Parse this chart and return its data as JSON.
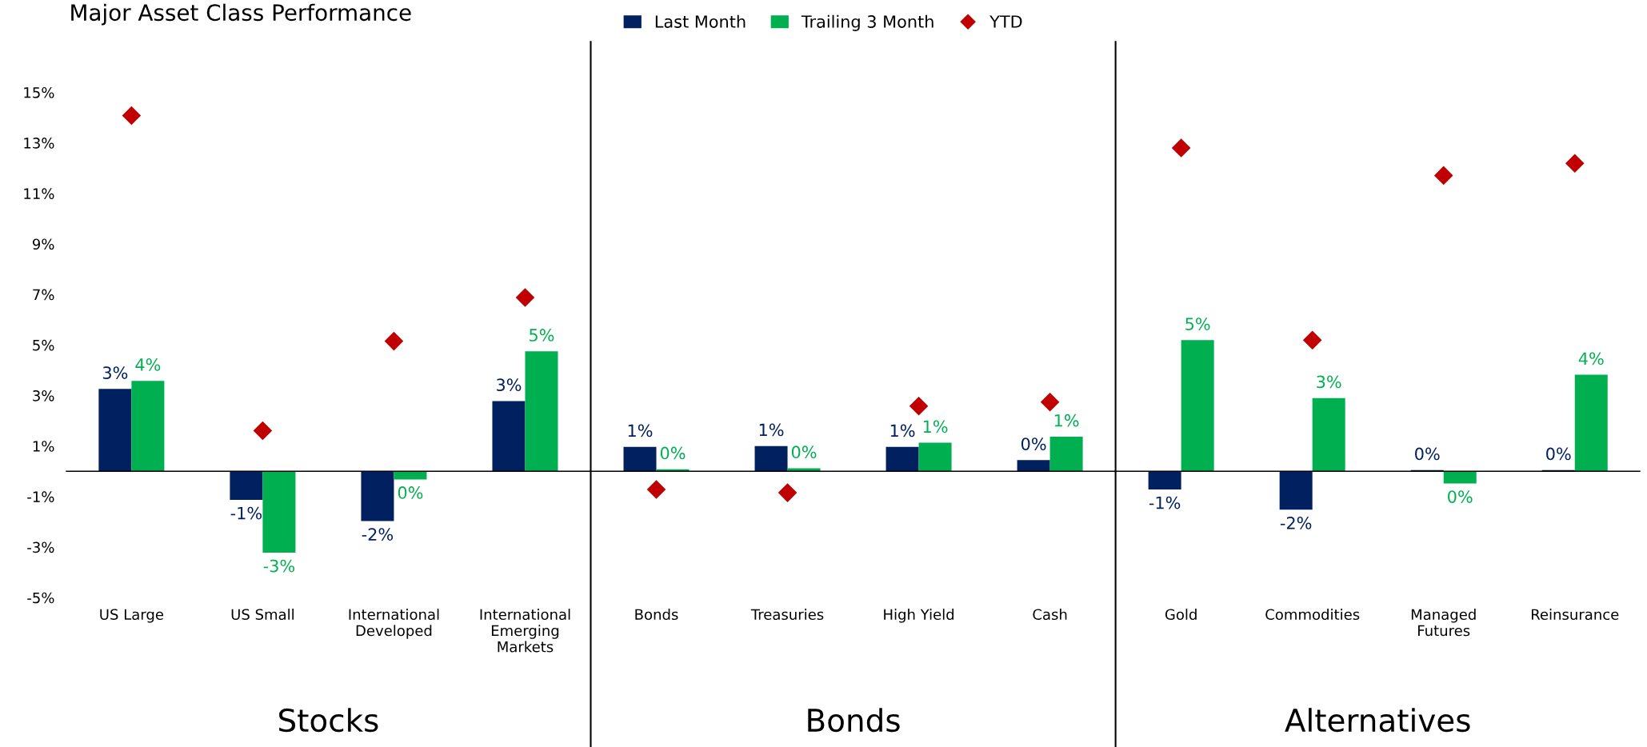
{
  "chart_data": {
    "type": "bar",
    "title": "Major Asset Class Performance",
    "categories": [
      "US Large",
      "US Small",
      "International\nDeveloped",
      "International\nEmerging\nMarkets",
      "Bonds",
      "Treasuries",
      "High Yield",
      "Cash",
      "Gold",
      "Commodities",
      "Managed\nFutures",
      "Reinsurance"
    ],
    "series": [
      {
        "name": "Last Month",
        "color": "#002060",
        "values": [
          3.26,
          -1.13,
          -1.97,
          2.78,
          0.97,
          1.0,
          0.97,
          0.44,
          -0.72,
          -1.52,
          0.05,
          0.05
        ],
        "value_labels": [
          "3%",
          "-1%",
          "-2%",
          "3%",
          "1%",
          "1%",
          "1%",
          "0%",
          "-1%",
          "-2%",
          "0%",
          "0%"
        ]
      },
      {
        "name": "Trailing 3 Month",
        "color": "#00b050",
        "values": [
          3.58,
          -3.22,
          -0.32,
          4.75,
          0.08,
          0.12,
          1.13,
          1.37,
          5.19,
          2.9,
          -0.48,
          3.82
        ],
        "value_labels": [
          "4%",
          "-3%",
          "0%",
          "5%",
          "0%",
          "0%",
          "1%",
          "1%",
          "5%",
          "3%",
          "0%",
          "4%"
        ]
      },
      {
        "name": "YTD",
        "type": "scatter",
        "marker": "diamond",
        "color": "#c00000",
        "values": [
          14.08,
          1.61,
          5.15,
          6.88,
          -0.72,
          -0.85,
          2.58,
          2.74,
          12.8,
          5.19,
          11.71,
          12.19
        ]
      }
    ],
    "ylim": [
      -5,
      17
    ],
    "yticks": [
      {
        "value": -5,
        "label": "-5%"
      },
      {
        "value": -3,
        "label": "-3%"
      },
      {
        "value": -1,
        "label": "-1%"
      },
      {
        "value": 1,
        "label": "1%"
      },
      {
        "value": 3,
        "label": "3%"
      },
      {
        "value": 5,
        "label": "5%"
      },
      {
        "value": 7,
        "label": "7%"
      },
      {
        "value": 9,
        "label": "9%"
      },
      {
        "value": 11,
        "label": "11%"
      },
      {
        "value": 13,
        "label": "13%"
      },
      {
        "value": 15,
        "label": "15%"
      }
    ],
    "annotations": [
      "Stocks",
      "Bonds",
      "Alternatives"
    ],
    "grid": false,
    "legend": "top"
  }
}
